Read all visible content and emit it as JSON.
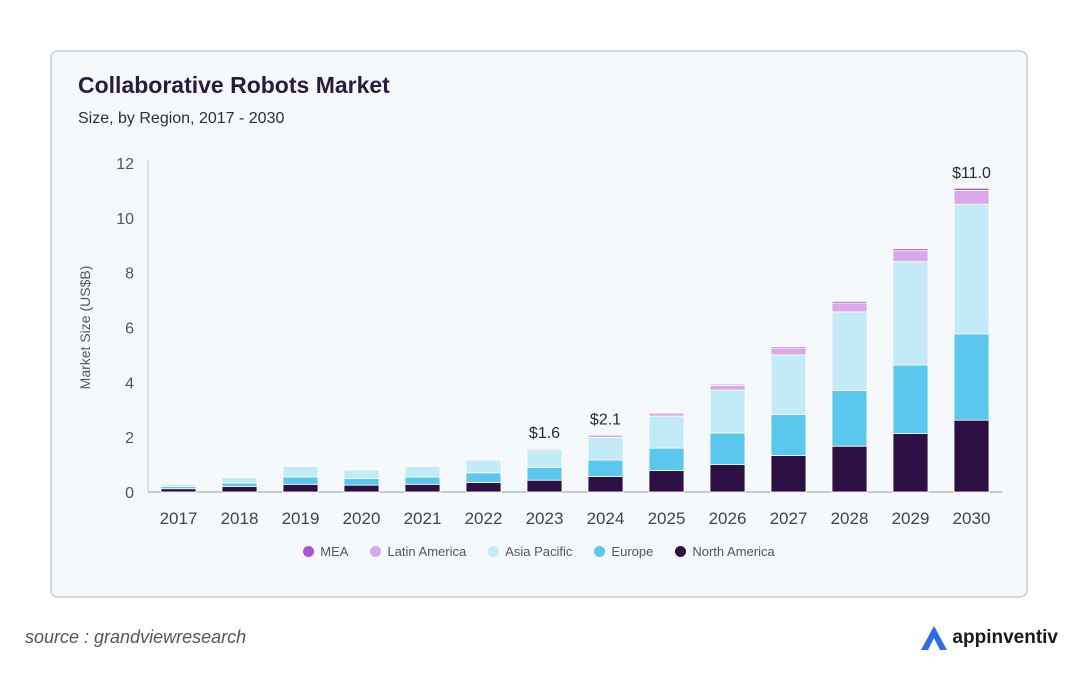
{
  "header": {
    "title": "Collaborative Robots Market",
    "subtitle": "Size, by Region, 2017 - 2030"
  },
  "footer": {
    "source": "source : grandviewresearch",
    "brand": "appinventiv",
    "brand_icon": "appinventiv-logo-icon",
    "brand_color": "#2b6be8"
  },
  "chart_data": {
    "type": "bar",
    "stacked": true,
    "categories": [
      "2017",
      "2018",
      "2019",
      "2020",
      "2021",
      "2022",
      "2023",
      "2024",
      "2025",
      "2026",
      "2027",
      "2028",
      "2029",
      "2030"
    ],
    "series": [
      {
        "name": "North America",
        "color": "#2d1145",
        "values": [
          0.12,
          0.2,
          0.28,
          0.25,
          0.28,
          0.35,
          0.43,
          0.57,
          0.78,
          1.0,
          1.33,
          1.67,
          2.13,
          2.62
        ]
      },
      {
        "name": "Europe",
        "color": "#5ac8ee",
        "values": [
          0.08,
          0.13,
          0.27,
          0.24,
          0.27,
          0.35,
          0.47,
          0.6,
          0.82,
          1.15,
          1.5,
          2.03,
          2.5,
          3.15
        ]
      },
      {
        "name": "Asia Pacific",
        "color": "#c2eaf7",
        "values": [
          0.08,
          0.2,
          0.38,
          0.32,
          0.38,
          0.47,
          0.64,
          0.82,
          1.17,
          1.57,
          2.17,
          2.87,
          3.77,
          4.73
        ]
      },
      {
        "name": "Latin America",
        "color": "#d9a8e8",
        "values": [
          0.02,
          0.03,
          0.04,
          0.03,
          0.04,
          0.04,
          0.05,
          0.09,
          0.11,
          0.17,
          0.25,
          0.32,
          0.4,
          0.5
        ]
      },
      {
        "name": "MEA",
        "color": "#a855d6",
        "values": [
          0.01,
          0.01,
          0.01,
          0.01,
          0.01,
          0.01,
          0.01,
          0.02,
          0.03,
          0.04,
          0.05,
          0.06,
          0.07,
          0.08
        ]
      }
    ],
    "legend_order": [
      "MEA",
      "Latin America",
      "Asia Pacific",
      "Europe",
      "North America"
    ],
    "annotations": [
      {
        "category": "2023",
        "text": "$1.6"
      },
      {
        "category": "2024",
        "text": "$2.1"
      },
      {
        "category": "2030",
        "text": "$11.0"
      }
    ],
    "ylabel": "Market Size (US$B)",
    "ylim": [
      0,
      12
    ],
    "yticks": [
      0,
      2,
      4,
      6,
      8,
      10,
      12
    ],
    "grid": false,
    "legend_position": "bottom"
  }
}
